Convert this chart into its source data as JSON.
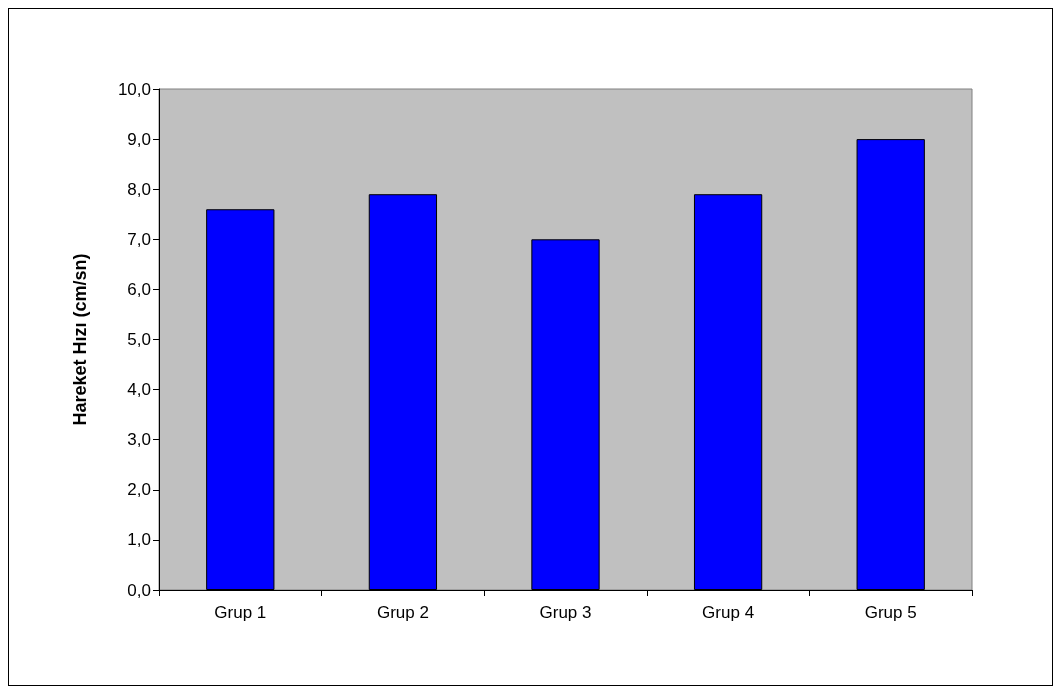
{
  "chart_data": {
    "type": "bar",
    "ylabel": "Hareket Hızı (cm/sn)",
    "categories": [
      "Grup 1",
      "Grup 2",
      "Grup 3",
      "Grup 4",
      "Grup 5"
    ],
    "values": [
      7.6,
      7.9,
      7.0,
      7.9,
      9.0
    ],
    "color": "#0000ff",
    "ylim": [
      0,
      10
    ],
    "yticks": [
      {
        "value": 0,
        "label": "0,0"
      },
      {
        "value": 1,
        "label": "1,0"
      },
      {
        "value": 2,
        "label": "2,0"
      },
      {
        "value": 3,
        "label": "3,0"
      },
      {
        "value": 4,
        "label": "4,0"
      },
      {
        "value": 5,
        "label": "5,0"
      },
      {
        "value": 6,
        "label": "6,0"
      },
      {
        "value": 7,
        "label": "7,0"
      },
      {
        "value": 8,
        "label": "8,0"
      },
      {
        "value": 9,
        "label": "9,0"
      },
      {
        "value": 10,
        "label": "10,0"
      }
    ],
    "grid": false
  }
}
